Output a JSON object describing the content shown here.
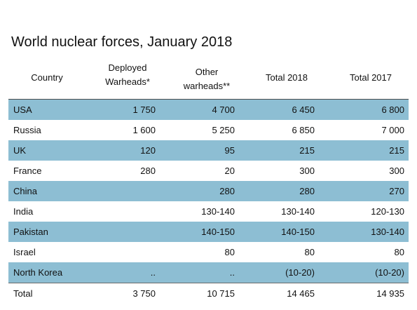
{
  "title": "World nuclear forces, January 2018",
  "columns": {
    "country": "Country",
    "deployed_line1": "Deployed",
    "deployed_line2": "Warheads*",
    "other_line1": "Other",
    "other_line2": "warheads**",
    "total_2018": "Total 2018",
    "total_2017": "Total 2017"
  },
  "rows": [
    {
      "country": "USA",
      "deployed": "1 750",
      "other": "4 700",
      "total_2018": "6 450",
      "total_2017": "6 800"
    },
    {
      "country": "Russia",
      "deployed": "1 600",
      "other": "5 250",
      "total_2018": "6 850",
      "total_2017": "7 000"
    },
    {
      "country": "UK",
      "deployed": "120",
      "other": "95",
      "total_2018": "215",
      "total_2017": "215"
    },
    {
      "country": "France",
      "deployed": "280",
      "other": "20",
      "total_2018": "300",
      "total_2017": "300"
    },
    {
      "country": "China",
      "deployed": "",
      "other": "280",
      "total_2018": "280",
      "total_2017": "270"
    },
    {
      "country": "India",
      "deployed": "",
      "other": "130-140",
      "total_2018": "130-140",
      "total_2017": "120-130"
    },
    {
      "country": "Pakistan",
      "deployed": "",
      "other": "140-150",
      "total_2018": "140-150",
      "total_2017": "130-140"
    },
    {
      "country": "Israel",
      "deployed": "",
      "other": "80",
      "total_2018": "80",
      "total_2017": "80"
    },
    {
      "country": "North Korea",
      "deployed": "..",
      "other": "..",
      "total_2018": "(10-20)",
      "total_2017": "(10-20)"
    }
  ],
  "total": {
    "country": "Total",
    "deployed": "3 750",
    "other": "10 715",
    "total_2018": "14 465",
    "total_2017": "14 935"
  },
  "colors": {
    "row_shade": "#8dbed3",
    "text": "#111111",
    "rule": "#4d4d4d"
  }
}
